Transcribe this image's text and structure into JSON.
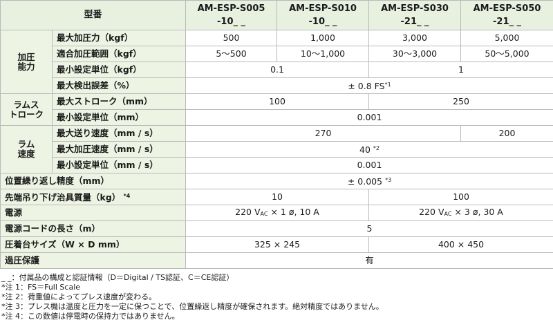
{
  "header": {
    "type_label": "型番",
    "models": [
      {
        "line1": "AM-ESP-S005",
        "line2": "-10_ _"
      },
      {
        "line1": "AM-ESP-S010",
        "line2": "-10_ _"
      },
      {
        "line1": "AM-ESP-S030",
        "line2": "-21_ _"
      },
      {
        "line1": "AM-ESP-S050",
        "line2": "-21_ _"
      }
    ]
  },
  "rows": {
    "pressure_group": "加圧\n能力",
    "max_force": {
      "label": "最大加圧力（kgf）",
      "v": [
        "500",
        "1,000",
        "3,000",
        "5,000"
      ]
    },
    "force_range": {
      "label": "適合加圧範囲（kgf）",
      "v": [
        "5～500",
        "10～1,000",
        "30～3,000",
        "50～5,000"
      ]
    },
    "min_unit_kgf": {
      "label": "最小設定単位（kgf）",
      "v": [
        "0.1",
        "1"
      ]
    },
    "max_error": {
      "label": "最大検出誤差（%）",
      "v": "± 0.8 FS",
      "note": "*1"
    },
    "stroke_group": "ラムス\nトローク",
    "max_stroke": {
      "label": "最大ストローク（mm）",
      "v": [
        "100",
        "250"
      ]
    },
    "min_unit_mm": {
      "label": "最小設定単位（mm）",
      "v": "0.001"
    },
    "speed_group": "ラム\n速度",
    "max_feed": {
      "label": "最大送り速度（mm / s）",
      "v": [
        "270",
        "200"
      ]
    },
    "max_press_speed": {
      "label": "最大加圧速度（mm / s）",
      "v": "40",
      "note": "*2"
    },
    "min_unit_mms": {
      "label": "最小設定単位（mm / s）",
      "v": "0.001"
    },
    "repeat": {
      "label": "位置繰り返し精度（mm）",
      "v": "± 0.005",
      "note": "*3"
    },
    "jig_mass": {
      "label": "先端吊り下げ治具質量（kg）",
      "note": "*4",
      "v": [
        "10",
        "100"
      ]
    },
    "power": {
      "label": "電源",
      "v1": {
        "pre": "220 V",
        "ac": "AC",
        "post": "× 1 ø, 10 A"
      },
      "v2": {
        "pre": "220 V",
        "ac": "AC",
        "post": "× 3 ø, 30 A"
      }
    },
    "cord": {
      "label": "電源コードの長さ（m）",
      "v": "5"
    },
    "table_size": {
      "label": "圧着台サイズ（W × D mm）",
      "v": [
        "325 × 245",
        "400 × 450"
      ]
    },
    "overpressure": {
      "label": "過圧保護",
      "v": "有"
    }
  },
  "notes": [
    "_ _：付属品の構成と認証情報（D＝Digital / TS認証、C＝CE認証）",
    "*注 1：FS＝Full Scale",
    "*注 2：荷重値によってプレス速度が変わる。",
    "*注 3：プレス機は温度と圧力を一定に保つことで、位置繰返し精度が確保されます。絶対精度ではありません。",
    "*注 4：この数値は停電時の保持力ではありません。"
  ]
}
